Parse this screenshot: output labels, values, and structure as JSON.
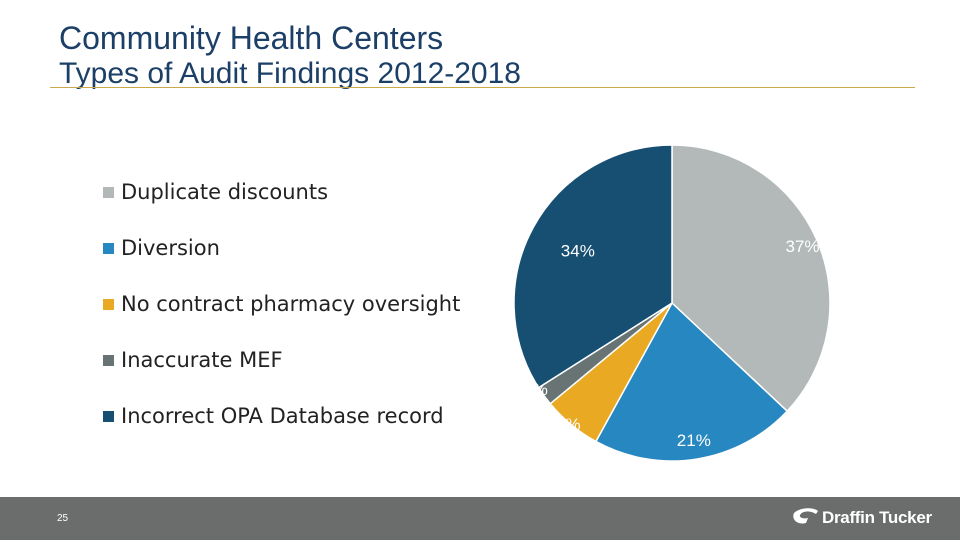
{
  "header": {
    "title": "Community Health Centers",
    "subtitle": "Types of Audit Findings 2012-2018"
  },
  "colors": {
    "title": "#1b3f66",
    "rule": "#c9a94a",
    "footer": "#6a6d6b"
  },
  "chart_data": {
    "type": "pie",
    "title": "Types of Audit Findings 2012-2018",
    "categories": [
      "Duplicate discounts",
      "Diversion",
      "No contract pharmacy oversight",
      "Inaccurate MEF",
      "Incorrect OPA Database record"
    ],
    "values": [
      37,
      21,
      6,
      2,
      34
    ],
    "labels": [
      "37%",
      "21%",
      "6%",
      "2%",
      "34%"
    ],
    "colors": [
      "#b3b9b9",
      "#2787c0",
      "#eaa923",
      "#687474",
      "#164f72"
    ],
    "legend_position": "left"
  },
  "footer": {
    "page_number": "25",
    "logo_text": "Draffin Tucker",
    "logo_icon": "swoosh-icon"
  }
}
